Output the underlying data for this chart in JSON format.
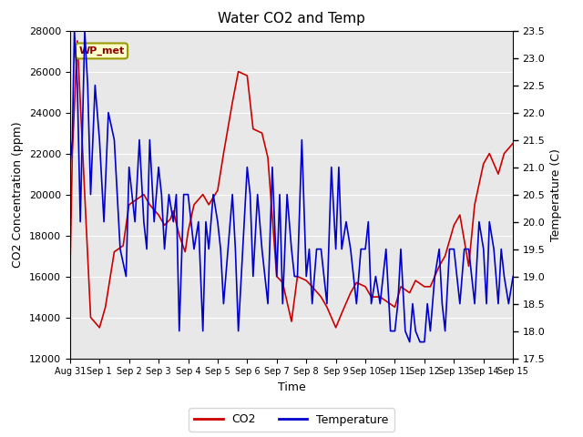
{
  "title": "Water CO2 and Temp",
  "xlabel": "Time",
  "ylabel_left": "CO2 Concentration (ppm)",
  "ylabel_right": "Temperature (C)",
  "ylim_left": [
    12000,
    28000
  ],
  "ylim_right": [
    17.5,
    23.5
  ],
  "yticks_left": [
    12000,
    14000,
    16000,
    18000,
    20000,
    22000,
    24000,
    26000,
    28000
  ],
  "yticks_right": [
    17.5,
    18.0,
    18.5,
    19.0,
    19.5,
    20.0,
    20.5,
    21.0,
    21.5,
    22.0,
    22.5,
    23.0,
    23.5
  ],
  "co2_color": "#cc0000",
  "temp_color": "#0000cc",
  "fig_bg_color": "#ffffff",
  "plot_bg_color": "#e8e8e8",
  "legend_label_co2": "CO2",
  "legend_label_temp": "Temperature",
  "annotation_text": "WP_met",
  "x_tick_labels": [
    "Aug 31",
    "Sep 1",
    "Sep 2",
    "Sep 3",
    "Sep 4",
    "Sep 5",
    "Sep 6",
    "Sep 7",
    "Sep 8",
    "Sep 9",
    "Sep 10",
    "Sep 11",
    "Sep 12",
    "Sep 13",
    "Sep 14",
    "Sep 15"
  ],
  "x_tick_positions": [
    0,
    1,
    2,
    3,
    4,
    5,
    6,
    7,
    8,
    9,
    10,
    11,
    12,
    13,
    14,
    15
  ],
  "co2_t": [
    0.0,
    0.08,
    0.25,
    0.5,
    0.7,
    1.0,
    1.2,
    1.5,
    1.8,
    2.0,
    2.2,
    2.5,
    2.7,
    3.0,
    3.2,
    3.4,
    3.5,
    3.7,
    3.9,
    4.0,
    4.2,
    4.5,
    4.7,
    5.0,
    5.2,
    5.5,
    5.7,
    6.0,
    6.2,
    6.5,
    6.7,
    7.0,
    7.2,
    7.5,
    7.7,
    8.0,
    8.2,
    8.5,
    8.7,
    9.0,
    9.2,
    9.5,
    9.7,
    10.0,
    10.2,
    10.5,
    10.7,
    11.0,
    11.2,
    11.5,
    11.7,
    12.0,
    12.2,
    12.5,
    12.7,
    13.0,
    13.2,
    13.5,
    13.7,
    14.0,
    14.2,
    14.5,
    14.7,
    15.0
  ],
  "co2_v": [
    16000,
    22000,
    27500,
    20000,
    14000,
    13500,
    14500,
    17200,
    17500,
    19500,
    19700,
    20000,
    19500,
    19000,
    18500,
    18800,
    19200,
    18000,
    17200,
    18200,
    19500,
    20000,
    19500,
    20200,
    22000,
    24500,
    26000,
    25800,
    23200,
    23000,
    21800,
    16000,
    15700,
    13800,
    16000,
    15800,
    15500,
    15000,
    14500,
    13500,
    14200,
    15200,
    15700,
    15500,
    15000,
    15000,
    14800,
    14500,
    15500,
    15200,
    15800,
    15500,
    15500,
    16500,
    17000,
    18500,
    19000,
    16500,
    19500,
    21500,
    22000,
    21000,
    22000,
    22500
  ],
  "temp_t": [
    0.0,
    0.08,
    0.15,
    0.25,
    0.35,
    0.5,
    0.6,
    0.7,
    0.85,
    1.0,
    1.15,
    1.3,
    1.5,
    1.7,
    1.9,
    2.0,
    2.1,
    2.2,
    2.35,
    2.5,
    2.6,
    2.7,
    2.85,
    3.0,
    3.1,
    3.2,
    3.35,
    3.5,
    3.6,
    3.7,
    3.85,
    4.0,
    4.1,
    4.2,
    4.35,
    4.5,
    4.6,
    4.7,
    4.85,
    5.0,
    5.1,
    5.2,
    5.35,
    5.5,
    5.6,
    5.7,
    5.85,
    6.0,
    6.1,
    6.2,
    6.35,
    6.5,
    6.6,
    6.7,
    6.85,
    7.0,
    7.1,
    7.2,
    7.35,
    7.5,
    7.6,
    7.7,
    7.85,
    8.0,
    8.1,
    8.2,
    8.35,
    8.5,
    8.6,
    8.7,
    8.85,
    9.0,
    9.1,
    9.2,
    9.35,
    9.5,
    9.6,
    9.7,
    9.85,
    10.0,
    10.1,
    10.2,
    10.35,
    10.5,
    10.6,
    10.7,
    10.85,
    11.0,
    11.1,
    11.2,
    11.35,
    11.5,
    11.6,
    11.7,
    11.85,
    12.0,
    12.1,
    12.2,
    12.35,
    12.5,
    12.6,
    12.7,
    12.85,
    13.0,
    13.1,
    13.2,
    13.35,
    13.5,
    13.6,
    13.7,
    13.85,
    14.0,
    14.1,
    14.2,
    14.35,
    14.5,
    14.6,
    14.7,
    14.85,
    15.0
  ],
  "temp_v": [
    21.0,
    21.5,
    23.5,
    22.5,
    20.0,
    23.5,
    22.5,
    20.5,
    22.5,
    21.5,
    20.0,
    22.0,
    21.5,
    19.5,
    19.0,
    21.0,
    20.5,
    20.0,
    21.5,
    20.0,
    19.5,
    21.5,
    20.0,
    21.0,
    20.5,
    19.5,
    20.5,
    20.0,
    20.5,
    18.0,
    20.5,
    20.5,
    20.0,
    19.5,
    20.0,
    18.0,
    20.0,
    19.5,
    20.5,
    20.0,
    19.5,
    18.5,
    19.5,
    20.5,
    19.5,
    18.0,
    19.5,
    21.0,
    20.5,
    19.0,
    20.5,
    19.5,
    19.0,
    18.5,
    21.0,
    19.0,
    20.5,
    18.5,
    20.5,
    19.5,
    19.0,
    19.0,
    21.5,
    19.0,
    19.5,
    18.5,
    19.5,
    19.5,
    19.0,
    18.5,
    21.0,
    19.5,
    21.0,
    19.5,
    20.0,
    19.5,
    19.0,
    18.5,
    19.5,
    19.5,
    20.0,
    18.5,
    19.0,
    18.5,
    19.0,
    19.5,
    18.0,
    18.0,
    18.5,
    19.5,
    18.0,
    17.8,
    18.5,
    18.0,
    17.8,
    17.8,
    18.5,
    18.0,
    19.0,
    19.5,
    18.5,
    18.0,
    19.5,
    19.5,
    19.0,
    18.5,
    19.5,
    19.5,
    19.0,
    18.5,
    20.0,
    19.5,
    18.5,
    20.0,
    19.5,
    18.5,
    19.5,
    19.0,
    18.5,
    19.0
  ]
}
